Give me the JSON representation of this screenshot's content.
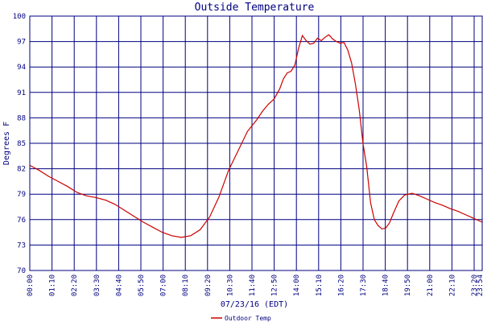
{
  "chart_data": {
    "type": "line",
    "title": "Outside Temperature",
    "xlabel": "07/23/16 (EDT)",
    "ylabel": "Degrees F",
    "ylim": [
      70,
      100
    ],
    "xlim_hours": [
      0,
      23.9
    ],
    "grid": true,
    "legend_position": "bottom-left",
    "y_ticks": [
      "70",
      "73",
      "76",
      "79",
      "82",
      "85",
      "88",
      "91",
      "94",
      "97",
      "100"
    ],
    "x_ticks": [
      "00:00",
      "01:10",
      "02:20",
      "03:30",
      "04:40",
      "05:50",
      "07:00",
      "08:10",
      "09:20",
      "10:30",
      "11:40",
      "12:50",
      "14:00",
      "15:10",
      "16:20",
      "17:30",
      "18:40",
      "19:50",
      "21:00",
      "22:10",
      "23:20",
      "23:54"
    ],
    "colors": {
      "grid": "#000080",
      "text": "#000080",
      "series": "#cc0000",
      "background": "#ffffff"
    },
    "series": [
      {
        "name": "Outdoor Temp",
        "x_hours": [
          0,
          0.5,
          1.0,
          1.5,
          2.0,
          2.5,
          3.0,
          3.5,
          4.0,
          4.5,
          5.0,
          5.5,
          6.0,
          6.5,
          7.0,
          7.5,
          8.0,
          8.5,
          9.0,
          9.5,
          10.0,
          10.5,
          11.0,
          11.5,
          12.0,
          12.3,
          12.6,
          12.9,
          13.2,
          13.4,
          13.6,
          13.8,
          14.0,
          14.2,
          14.4,
          14.6,
          14.8,
          15.0,
          15.2,
          15.4,
          15.6,
          15.8,
          16.0,
          16.2,
          16.4,
          16.6,
          16.8,
          17.0,
          17.2,
          17.4,
          17.6,
          17.8,
          18.0,
          18.2,
          18.4,
          18.6,
          18.8,
          19.0,
          19.2,
          19.5,
          19.8,
          20.2,
          20.6,
          21.0,
          21.4,
          21.8,
          22.2,
          22.6,
          23.0,
          23.4,
          23.9
        ],
        "values": [
          82.4,
          81.8,
          81.1,
          80.5,
          79.9,
          79.2,
          78.8,
          78.6,
          78.3,
          77.8,
          77.1,
          76.4,
          75.7,
          75.1,
          74.5,
          74.1,
          73.9,
          74.1,
          74.8,
          76.3,
          78.7,
          81.8,
          84.1,
          86.4,
          87.8,
          88.8,
          89.6,
          90.2,
          91.4,
          92.6,
          93.3,
          93.5,
          94.2,
          96.2,
          97.7,
          97.1,
          96.7,
          96.8,
          97.4,
          97.1,
          97.5,
          97.8,
          97.3,
          97.0,
          96.8,
          96.9,
          96.0,
          94.5,
          92.0,
          89.0,
          85.0,
          82.2,
          78.0,
          76.0,
          75.3,
          74.9,
          75.0,
          75.6,
          76.7,
          78.2,
          78.9,
          79.1,
          78.8,
          78.4,
          78.0,
          77.7,
          77.3,
          77.0,
          76.6,
          76.2,
          75.7
        ]
      }
    ]
  }
}
